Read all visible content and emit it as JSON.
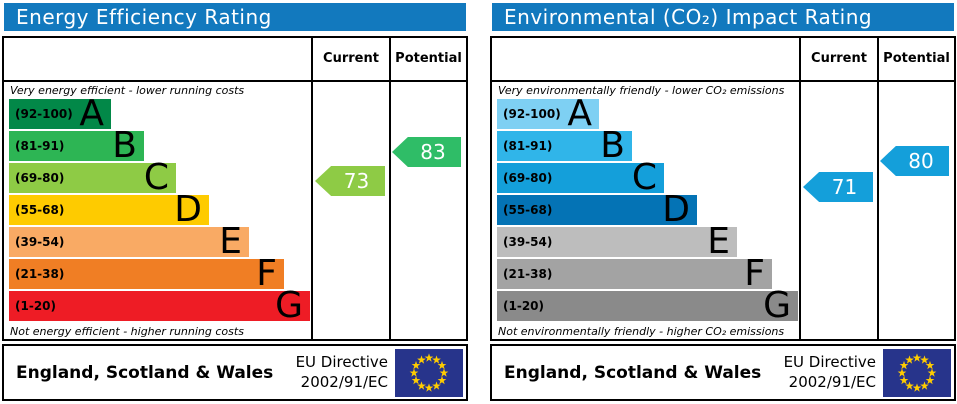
{
  "colors": {
    "header_bg": "#1279BE",
    "header_text": "#FFFFFF",
    "border": "#000000",
    "eu_flag_bg": "#27348B",
    "eu_star": "#FFCC00",
    "arrow_text": "#FFFFFF"
  },
  "panels": [
    {
      "title": "Energy Efficiency Rating",
      "col_current": "Current",
      "col_potential": "Potential",
      "top_caption": "Very energy efficient - lower running costs",
      "bottom_caption": "Not energy efficient - higher running costs",
      "bands": [
        {
          "range": "(92-100)",
          "letter": "A",
          "color": "#028848"
        },
        {
          "range": "(81-91)",
          "letter": "B",
          "color": "#2DB554"
        },
        {
          "range": "(69-80)",
          "letter": "C",
          "color": "#8ECB45"
        },
        {
          "range": "(55-68)",
          "letter": "D",
          "color": "#FECB00"
        },
        {
          "range": "(39-54)",
          "letter": "E",
          "color": "#F9AA64"
        },
        {
          "range": "(21-38)",
          "letter": "F",
          "color": "#F07E24"
        },
        {
          "range": "(1-20)",
          "letter": "G",
          "color": "#EE1C25"
        }
      ],
      "current": {
        "value": 73,
        "color": "#8ECB45"
      },
      "potential": {
        "value": 83,
        "color": "#2FBD67"
      },
      "footer": {
        "region": "England, Scotland & Wales",
        "directive_line1": "EU Directive",
        "directive_line2": "2002/91/EC"
      }
    },
    {
      "title": "Environmental (CO₂) Impact Rating",
      "col_current": "Current",
      "col_potential": "Potential",
      "top_caption": "Very environmentally friendly - lower CO₂ emissions",
      "bottom_caption": "Not environmentally friendly - higher CO₂ emissions",
      "bands": [
        {
          "range": "(92-100)",
          "letter": "A",
          "color": "#7ED0F3"
        },
        {
          "range": "(81-91)",
          "letter": "B",
          "color": "#30B5E9"
        },
        {
          "range": "(69-80)",
          "letter": "C",
          "color": "#149FDA"
        },
        {
          "range": "(55-68)",
          "letter": "D",
          "color": "#0473B5"
        },
        {
          "range": "(39-54)",
          "letter": "E",
          "color": "#BDBDBD"
        },
        {
          "range": "(21-38)",
          "letter": "F",
          "color": "#A3A3A3"
        },
        {
          "range": "(1-20)",
          "letter": "G",
          "color": "#8A8A8A"
        }
      ],
      "current": {
        "value": 71,
        "color": "#149FDA"
      },
      "potential": {
        "value": 80,
        "color": "#149FDA"
      },
      "footer": {
        "region": "England, Scotland & Wales",
        "directive_line1": "EU Directive",
        "directive_line2": "2002/91/EC"
      }
    }
  ],
  "chart_data": [
    {
      "type": "bar",
      "title": "Energy Efficiency Rating",
      "categories": [
        "A (92-100)",
        "B (81-91)",
        "C (69-80)",
        "D (55-68)",
        "E (39-54)",
        "F (21-38)",
        "G (1-20)"
      ],
      "current": 73,
      "current_band": "C",
      "potential": 83,
      "potential_band": "B",
      "scale": [
        1,
        100
      ],
      "footer": "England, Scotland & Wales — EU Directive 2002/91/EC"
    },
    {
      "type": "bar",
      "title": "Environmental (CO₂) Impact Rating",
      "categories": [
        "A (92-100)",
        "B (81-91)",
        "C (69-80)",
        "D (55-68)",
        "E (39-54)",
        "F (21-38)",
        "G (1-20)"
      ],
      "current": 71,
      "current_band": "C",
      "potential": 80,
      "potential_band": "C",
      "scale": [
        1,
        100
      ],
      "footer": "England, Scotland & Wales — EU Directive 2002/91/EC"
    }
  ]
}
